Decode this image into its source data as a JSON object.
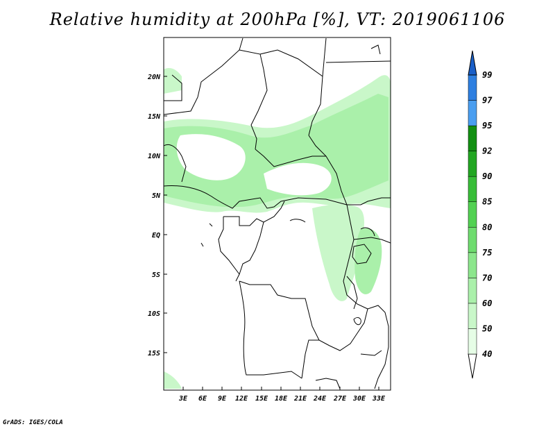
{
  "title": "Relative humidity at 200hPa [%], VT: 2019061106",
  "lat_ticks": [
    "20N",
    "15N",
    "10N",
    "5N",
    "EQ",
    "5S",
    "10S",
    "15S"
  ],
  "lon_ticks": [
    "3E",
    "6E",
    "9E",
    "12E",
    "15E",
    "18E",
    "21E",
    "24E",
    "27E",
    "30E",
    "33E"
  ],
  "colorbar": {
    "levels": [
      "40",
      "50",
      "60",
      "70",
      "75",
      "80",
      "85",
      "90",
      "92",
      "95",
      "97",
      "99"
    ],
    "colors": [
      "#ffffff",
      "#e6fde6",
      "#c9f7c9",
      "#aaf0aa",
      "#8ce68c",
      "#6fdc6f",
      "#52d152",
      "#38bd38",
      "#22a622",
      "#128f12",
      "#4a9ef0",
      "#2e7fe0",
      "#1a5fc8"
    ]
  },
  "credit": "GrADS: IGES/COLA"
}
